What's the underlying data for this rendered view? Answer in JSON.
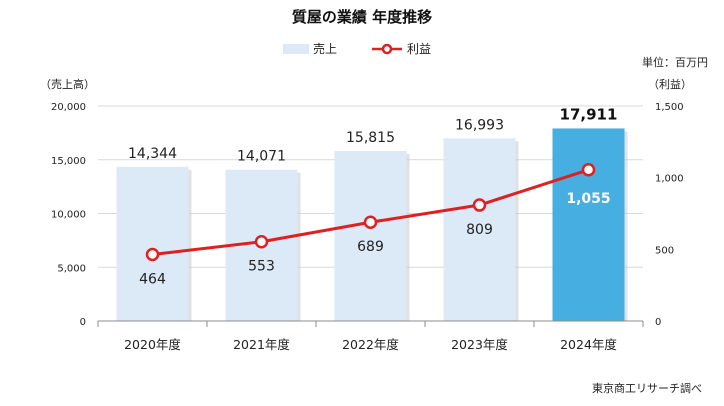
{
  "chart_data": {
    "type": "bar",
    "title": "質屋の業績 年度推移",
    "unit": "単位：百万円",
    "left_axis_label": "（売上高）",
    "right_axis_label": "（利益）",
    "categories": [
      "2020年度",
      "2021年度",
      "2022年度",
      "2023年度",
      "2024年度"
    ],
    "series": [
      {
        "name": "売上",
        "type": "bar",
        "axis": "left",
        "values": [
          14344,
          14071,
          15815,
          16993,
          17911
        ]
      },
      {
        "name": "利益",
        "type": "line",
        "axis": "right",
        "values": [
          464,
          553,
          689,
          809,
          1055
        ]
      }
    ],
    "bar_value_labels": [
      "14,344",
      "14,071",
      "15,815",
      "16,993",
      "17,911"
    ],
    "line_value_labels": [
      "464",
      "553",
      "689",
      "809",
      "1,055"
    ],
    "left_ylim": [
      0,
      20000
    ],
    "left_ticks": [
      0,
      5000,
      10000,
      15000,
      20000
    ],
    "left_tick_labels": [
      "0",
      "5,000",
      "10,000",
      "15,000",
      "20,000"
    ],
    "right_ylim": [
      0,
      1500
    ],
    "right_ticks": [
      0,
      500,
      1000,
      1500
    ],
    "right_tick_labels": [
      "0",
      "500",
      "1,000",
      "1,500"
    ],
    "grid": true,
    "legend_position": "top-center",
    "highlight_index": 4,
    "colors": {
      "bar": "#dce9f7",
      "bar_highlight": "#46aee0",
      "line": "#e02020",
      "grid": "#d9d9d9"
    },
    "source": "東京商工リサーチ調べ"
  }
}
